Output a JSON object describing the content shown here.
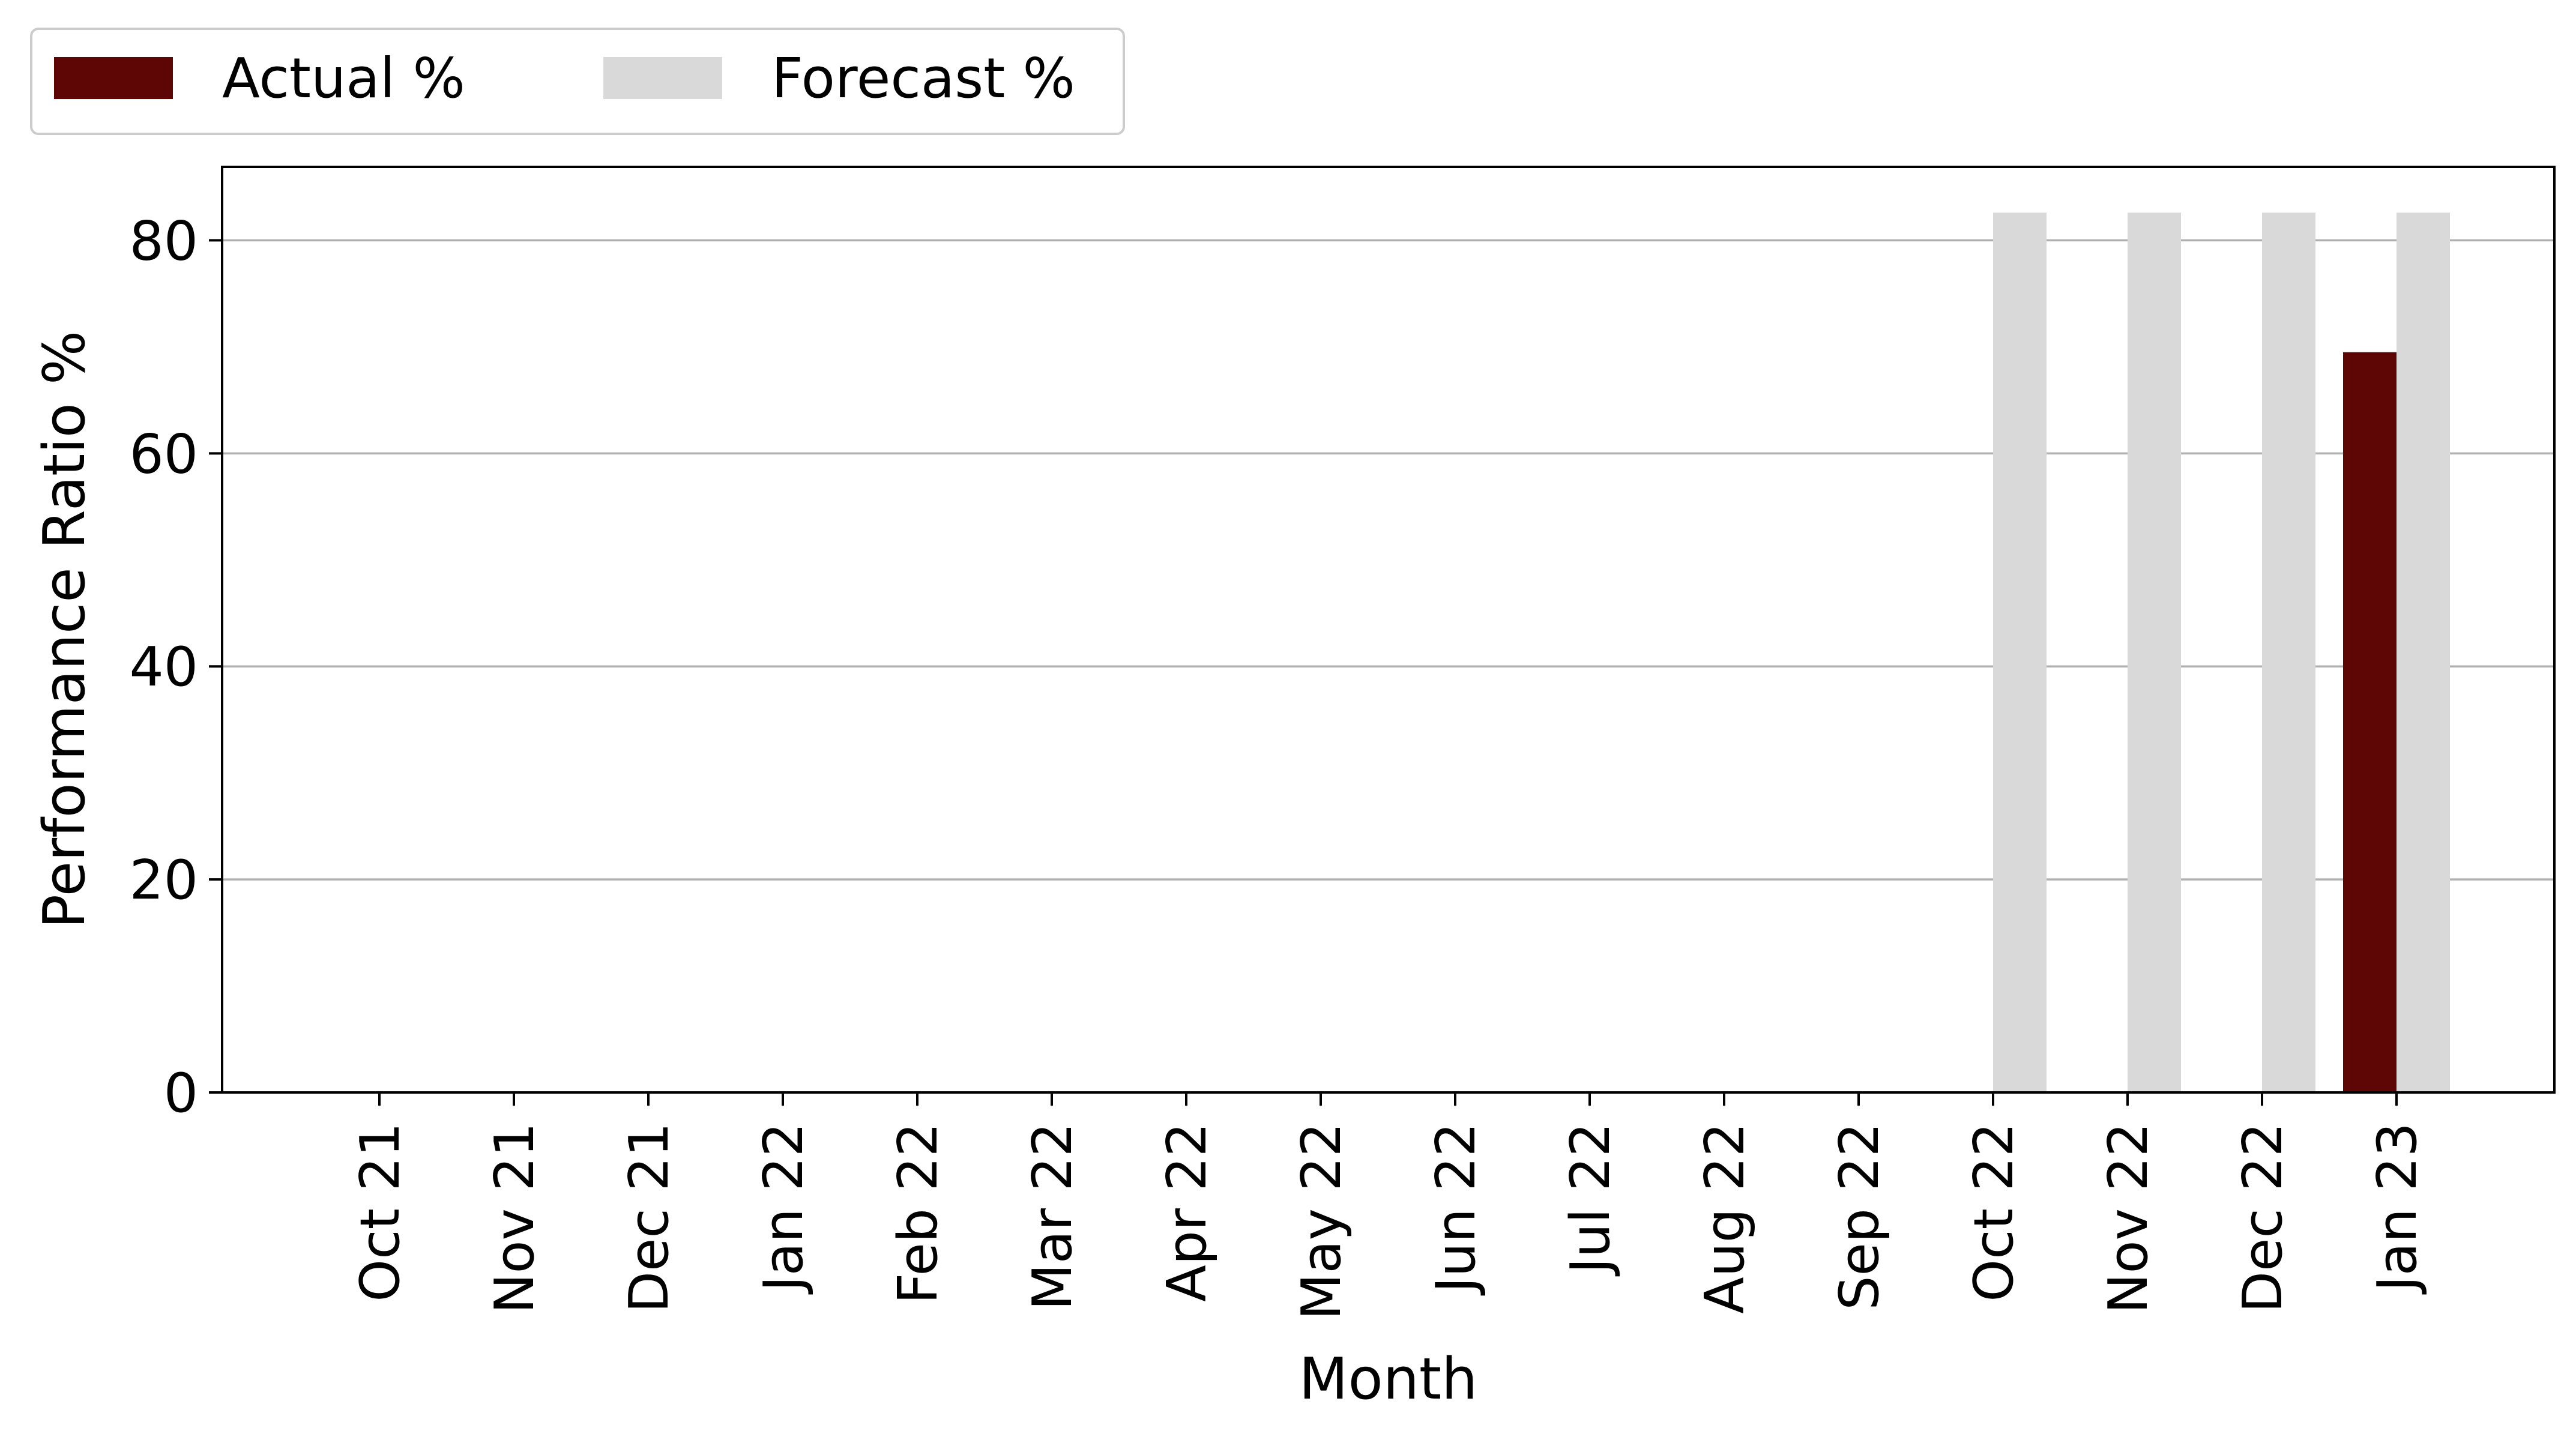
{
  "chart_data": {
    "type": "bar",
    "categories": [
      "Oct 21",
      "Nov 21",
      "Dec 21",
      "Jan 22",
      "Feb 22",
      "Mar 22",
      "Apr 22",
      "May 22",
      "Jun 22",
      "Jul 22",
      "Aug 22",
      "Sep 22",
      "Oct 22",
      "Nov 22",
      "Dec 22",
      "Jan 23"
    ],
    "series": [
      {
        "name": "Actual %",
        "color": "#5e0606",
        "values": [
          0,
          0,
          0,
          0,
          0,
          0,
          0,
          0,
          0,
          0,
          0,
          0,
          0,
          0,
          0,
          69.5
        ]
      },
      {
        "name": "Forecast %",
        "color": "#d9d9d9",
        "values": [
          0,
          0,
          0,
          0,
          0,
          0,
          0,
          0,
          0,
          0,
          0,
          0,
          82.6,
          82.6,
          82.6,
          82.6
        ]
      }
    ],
    "title": "",
    "xlabel": "Month",
    "ylabel": "Performance Ratio %",
    "ylim": [
      0,
      86.9
    ],
    "yticks": [
      0,
      20,
      40,
      60,
      80
    ],
    "grid": "y",
    "legend_position": "top-left"
  }
}
